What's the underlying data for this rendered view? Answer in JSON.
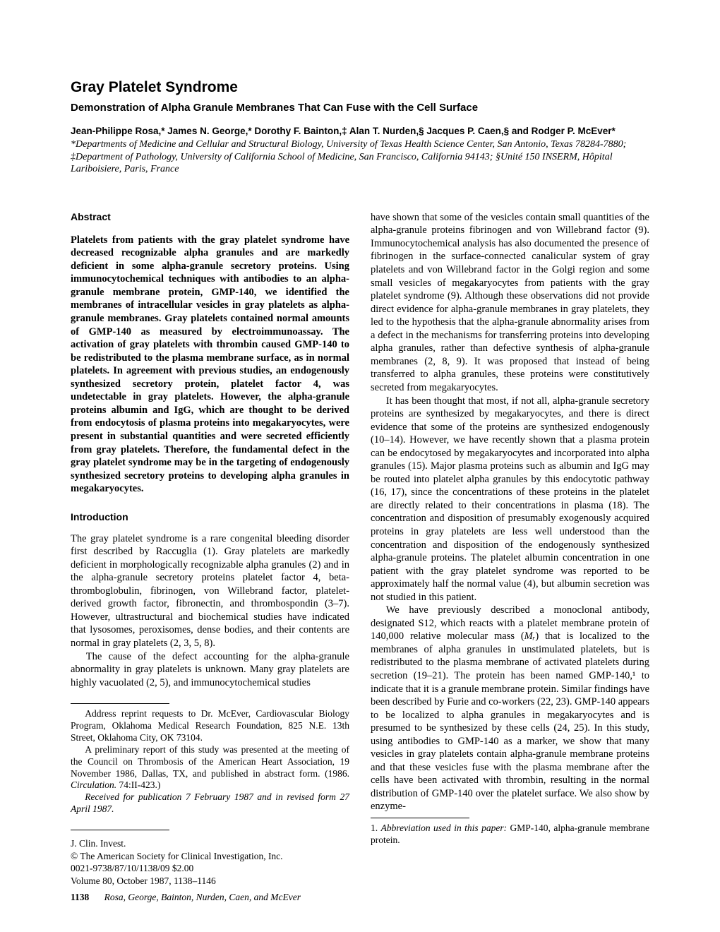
{
  "title": "Gray Platelet Syndrome",
  "subtitle": "Demonstration of Alpha Granule Membranes That Can Fuse with the Cell Surface",
  "authors_html": "Jean-Philippe Rosa,* James N. George,* Dorothy F. Bainton,‡ Alan T. Nurden,§ Jacques P. Caen,§ and Rodger P. McEver*",
  "affiliations": "*Departments of Medicine and Cellular and Structural Biology, University of Texas Health Science Center, San Antonio, Texas 78284-7880; ‡Department of Pathology, University of California School of Medicine, San Francisco, California 94143; §Unité 150 INSERM, Hôpital Lariboisiere, Paris, France",
  "abstract_heading": "Abstract",
  "abstract_text": "Platelets from patients with the gray platelet syndrome have decreased recognizable alpha granules and are markedly deficient in some alpha-granule secretory proteins. Using immunocytochemical techniques with antibodies to an alpha-granule membrane protein, GMP-140, we identified the membranes of intracellular vesicles in gray platelets as alpha-granule membranes. Gray platelets contained normal amounts of GMP-140 as measured by electroimmunoassay. The activation of gray platelets with thrombin caused GMP-140 to be redistributed to the plasma membrane surface, as in normal platelets. In agreement with previous studies, an endogenously synthesized secretory protein, platelet factor 4, was undetectable in gray platelets. However, the alpha-granule proteins albumin and IgG, which are thought to be derived from endocytosis of plasma proteins into megakaryocytes, were present in substantial quantities and were secreted efficiently from gray platelets. Therefore, the fundamental defect in the gray platelet syndrome may be in the targeting of endogenously synthesized secretory proteins to developing alpha granules in megakaryocytes.",
  "intro_heading": "Introduction",
  "intro_p1": "The gray platelet syndrome is a rare congenital bleeding disorder first described by Raccuglia (1). Gray platelets are markedly deficient in morphologically recognizable alpha granules (2) and in the alpha-granule secretory proteins platelet factor 4, beta-thromboglobulin, fibrinogen, von Willebrand factor, platelet-derived growth factor, fibronectin, and thrombospondin (3–7). However, ultrastructural and biochemical studies have indicated that lysosomes, peroxisomes, dense bodies, and their contents are normal in gray platelets (2, 3, 5, 8).",
  "intro_p2": "The cause of the defect accounting for the alpha-granule abnormality in gray platelets is unknown. Many gray platelets are highly vacuolated (2, 5), and immunocytochemical studies",
  "right_p1": "have shown that some of the vesicles contain small quantities of the alpha-granule proteins fibrinogen and von Willebrand factor (9). Immunocytochemical analysis has also documented the presence of fibrinogen in the surface-connected canalicular system of gray platelets and von Willebrand factor in the Golgi region and some small vesicles of megakaryocytes from patients with the gray platelet syndrome (9). Although these observations did not provide direct evidence for alpha-granule membranes in gray platelets, they led to the hypothesis that the alpha-granule abnormality arises from a defect in the mechanisms for transferring proteins into developing alpha granules, rather than defective synthesis of alpha-granule membranes (2, 8, 9). It was proposed that instead of being transferred to alpha granules, these proteins were constitutively secreted from megakaryocytes.",
  "right_p2": "It has been thought that most, if not all, alpha-granule secretory proteins are synthesized by megakaryocytes, and there is direct evidence that some of the proteins are synthesized endogenously (10–14). However, we have recently shown that a plasma protein can be endocytosed by megakaryocytes and incorporated into alpha granules (15). Major plasma proteins such as albumin and IgG may be routed into platelet alpha granules by this endocytotic pathway (16, 17), since the concentrations of these proteins in the platelet are directly related to their concentrations in plasma (18). The concentration and disposition of presumably exogenously acquired proteins in gray platelets are less well understood than the concentration and disposition of the endogenously synthesized alpha-granule proteins. The platelet albumin concentration in one patient with the gray platelet syndrome was reported to be approximately half the normal value (4), but albumin secretion was not studied in this patient.",
  "right_p3_a": "We have previously described a monoclonal antibody, designated S12, which reacts with a platelet membrane protein of 140,000 relative molecular mass (",
  "right_p3_mr": "Mᵣ",
  "right_p3_b": ") that is localized to the membranes of alpha granules in unstimulated platelets, but is redistributed to the plasma membrane of activated platelets during secretion (19–21). The protein has been named GMP-140,¹ to indicate that it is a granule membrane protein. Similar findings have been described by Furie and co-workers (22, 23). GMP-140 appears to be localized to alpha granules in megakaryocytes and is presumed to be synthesized by these cells (24, 25). In this study, using antibodies to GMP-140 as a marker, we show that many vesicles in gray platelets contain alpha-granule membrane proteins and that these vesicles fuse with the plasma membrane after the cells have been activated with thrombin, resulting in the normal distribution of GMP-140 over the platelet surface. We also show by enzyme-",
  "footnote_address": "Address reprint requests to Dr. McEver, Cardiovascular Biology Program, Oklahoma Medical Research Foundation, 825 N.E. 13th Street, Oklahoma City, OK 73104.",
  "footnote_prelim_a": "A preliminary report of this study was presented at the meeting of the Council on Thrombosis of the American Heart Association, 19 November 1986, Dallas, TX, and published in abstract form. (1986. ",
  "footnote_prelim_journal": "Circulation.",
  "footnote_prelim_b": " 74:II-423.)",
  "footnote_received": "Received for publication 7 February 1987 and in revised form 27 April 1987.",
  "journal_name": "J. Clin. Invest.",
  "copyright": "© The American Society for Clinical Investigation, Inc.",
  "issn": "0021-9738/87/10/1138/09   $2.00",
  "volume": "Volume 80, October 1987, 1138–1146",
  "abbrev_label": "Abbreviation used in this paper:",
  "abbrev_text": " GMP-140, alpha-granule membrane protein.",
  "page_number": "1138",
  "footer_authors": "Rosa, George, Bainton, Nurden, Caen, and McEver"
}
